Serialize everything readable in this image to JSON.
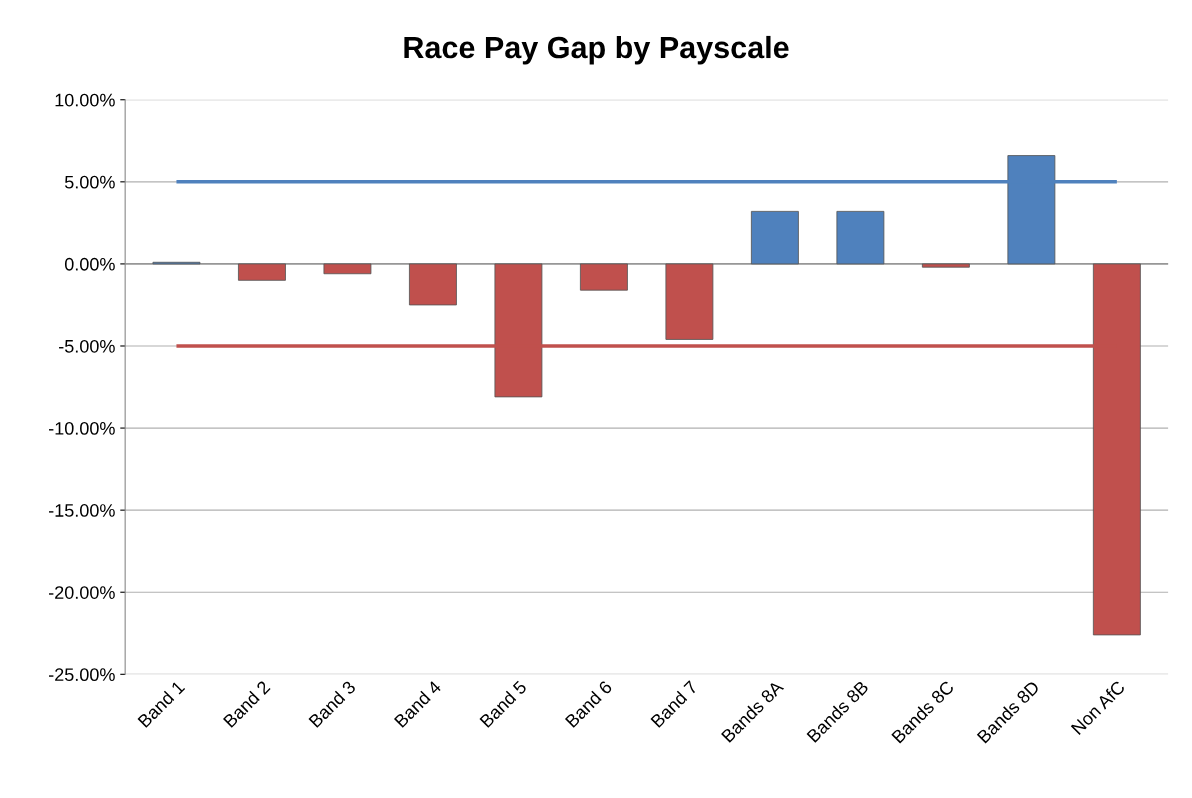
{
  "chart_data": {
    "type": "bar",
    "title": "Race Pay Gap by Payscale",
    "categories": [
      "Band 1",
      "Band 2",
      "Band 3",
      "Band 4",
      "Band 5",
      "Band 6",
      "Band 7",
      "Bands 8A",
      "Bands 8B",
      "Bands 8C",
      "Bands 8D",
      "Non AfC"
    ],
    "values": [
      0.1,
      -1.0,
      -0.6,
      -2.5,
      -8.1,
      -1.6,
      -4.6,
      3.2,
      3.2,
      -0.2,
      6.6,
      -22.6
    ],
    "colors": [
      "#4f81bd",
      "#c0504d",
      "#c0504d",
      "#c0504d",
      "#c0504d",
      "#c0504d",
      "#c0504d",
      "#4f81bd",
      "#4f81bd",
      "#c0504d",
      "#4f81bd",
      "#c0504d"
    ],
    "ylim": [
      -25,
      10
    ],
    "yticks": [
      {
        "value": -25,
        "label": "-25.00%"
      },
      {
        "value": -20,
        "label": "-20.00%"
      },
      {
        "value": -15,
        "label": "-15.00%"
      },
      {
        "value": -10,
        "label": "-10.00%"
      },
      {
        "value": -5,
        "label": "-5.00%"
      },
      {
        "value": 0,
        "label": "0.00%"
      },
      {
        "value": 5,
        "label": "5.00%"
      },
      {
        "value": 10,
        "label": "10.00%"
      }
    ],
    "ref_lines": [
      {
        "axis": "y",
        "value": 5,
        "label": null,
        "color": "#4f81bd"
      },
      {
        "axis": "y",
        "value": -5,
        "label": null,
        "color": "#c0504d"
      }
    ],
    "grid": "y"
  }
}
